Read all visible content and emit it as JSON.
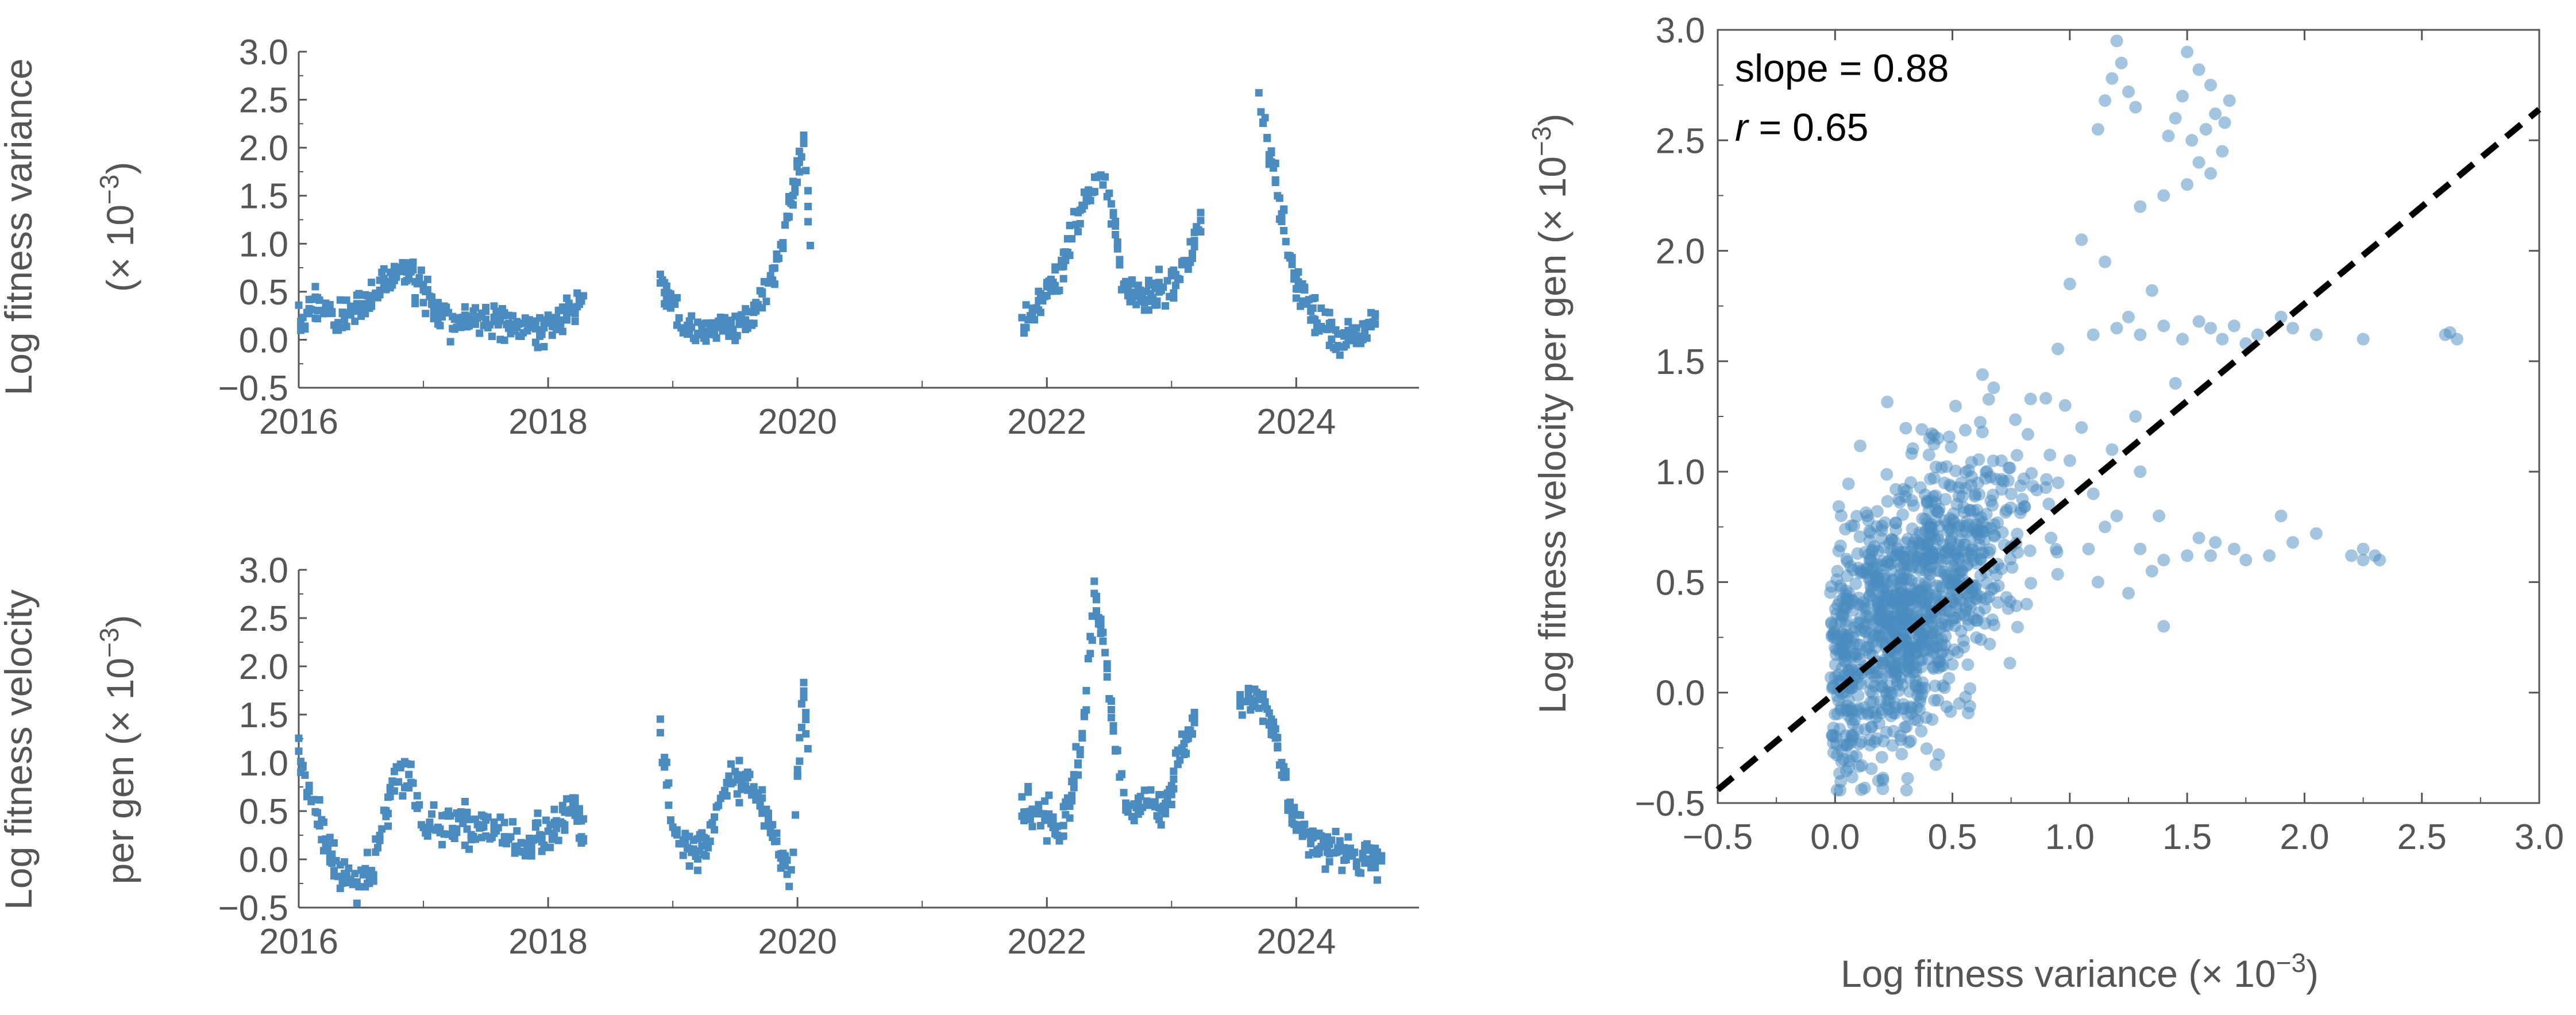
{
  "colors": {
    "series": "#4a8bc0",
    "scatter": "#4a8bc0",
    "fit_line": "#000000",
    "axis": "#555555"
  },
  "chart_data": [
    {
      "id": "variance_time",
      "type": "scatter",
      "ylabel_line1": "Log fitness variance",
      "ylabel_line2": "(× 10",
      "ylabel_line2_sup": "−3",
      "ylabel_line2_end": ")",
      "xlim": [
        2016.0,
        2024.8
      ],
      "ylim": [
        -0.5,
        3.0
      ],
      "xticks": [
        2016,
        2018,
        2020,
        2022,
        2024
      ],
      "xticks_minor": [
        2017,
        2019,
        2021,
        2023
      ],
      "yticks": [
        -0.5,
        0.0,
        0.5,
        1.0,
        1.5,
        2.0,
        2.5,
        3.0
      ],
      "ytick_labels": [
        "−0.5",
        "0.0",
        "0.5",
        "1.0",
        "1.5",
        "2.0",
        "2.5",
        "3.0"
      ],
      "anchors": [
        [
          2016.0,
          0.15
        ],
        [
          2016.1,
          0.35
        ],
        [
          2016.25,
          0.3
        ],
        [
          2016.3,
          0.15
        ],
        [
          2016.45,
          0.3
        ],
        [
          2016.6,
          0.5
        ],
        [
          2016.75,
          0.65
        ],
        [
          2016.85,
          0.75
        ],
        [
          2016.95,
          0.55
        ],
        [
          2017.1,
          0.35
        ],
        [
          2017.3,
          0.2
        ],
        [
          2017.5,
          0.25
        ],
        [
          2017.7,
          0.15
        ],
        [
          2017.9,
          0.1
        ],
        [
          2018.1,
          0.2
        ],
        [
          2018.3,
          0.4
        ],
        [
          null,
          null
        ],
        [
          2018.9,
          0.55
        ],
        [
          2019.0,
          0.35
        ],
        [
          2019.1,
          0.12
        ],
        [
          2019.3,
          0.08
        ],
        [
          2019.5,
          0.15
        ],
        [
          2019.65,
          0.3
        ],
        [
          2019.8,
          0.7
        ],
        [
          2019.9,
          1.1
        ],
        [
          2019.98,
          1.6
        ],
        [
          2020.05,
          2.1
        ],
        [
          2020.12,
          0.6
        ],
        [
          null,
          null
        ],
        [
          2021.8,
          0.05
        ],
        [
          2021.95,
          0.45
        ],
        [
          2022.1,
          0.7
        ],
        [
          2022.25,
          1.3
        ],
        [
          2022.35,
          1.55
        ],
        [
          2022.45,
          1.75
        ],
        [
          2022.55,
          1.2
        ],
        [
          2022.6,
          0.55
        ],
        [
          2022.75,
          0.4
        ],
        [
          2022.9,
          0.5
        ],
        [
          2023.05,
          0.6
        ],
        [
          2023.15,
          0.9
        ],
        [
          2023.25,
          1.3
        ],
        [
          null,
          null
        ],
        [
          2023.7,
          2.55
        ],
        [
          2023.8,
          1.9
        ],
        [
          2023.9,
          1.2
        ],
        [
          2024.0,
          0.6
        ],
        [
          2024.15,
          0.25
        ],
        [
          2024.3,
          0.05
        ],
        [
          2024.5,
          0.02
        ],
        [
          2024.65,
          0.25
        ]
      ]
    },
    {
      "id": "velocity_time",
      "type": "scatter",
      "ylabel_line1": "Log fitness velocity",
      "ylabel_line2": "per gen (× 10",
      "ylabel_line2_sup": "−3",
      "ylabel_line2_end": ")",
      "xlim": [
        2016.0,
        2024.8
      ],
      "ylim": [
        -0.5,
        3.0
      ],
      "xticks": [
        2016,
        2018,
        2020,
        2022,
        2024
      ],
      "xticks_minor": [
        2017,
        2019,
        2021,
        2023
      ],
      "yticks": [
        -0.5,
        0.0,
        0.5,
        1.0,
        1.5,
        2.0,
        2.5,
        3.0
      ],
      "ytick_labels": [
        "−0.5",
        "0.0",
        "0.5",
        "1.0",
        "1.5",
        "2.0",
        "2.5",
        "3.0"
      ],
      "anchors": [
        [
          2016.0,
          1.2
        ],
        [
          2016.1,
          0.6
        ],
        [
          2016.2,
          0.3
        ],
        [
          2016.3,
          -0.1
        ],
        [
          2016.45,
          -0.2
        ],
        [
          2016.6,
          -0.1
        ],
        [
          2016.75,
          0.8
        ],
        [
          2016.9,
          0.9
        ],
        [
          2017.0,
          0.3
        ],
        [
          2017.2,
          0.35
        ],
        [
          2017.4,
          0.3
        ],
        [
          2017.6,
          0.3
        ],
        [
          2017.8,
          0.1
        ],
        [
          2018.0,
          0.3
        ],
        [
          2018.2,
          0.6
        ],
        [
          2018.3,
          0.25
        ],
        [
          null,
          null
        ],
        [
          2018.9,
          1.3
        ],
        [
          2019.0,
          0.3
        ],
        [
          2019.15,
          0.1
        ],
        [
          2019.3,
          0.3
        ],
        [
          2019.45,
          0.85
        ],
        [
          2019.6,
          0.8
        ],
        [
          2019.75,
          0.5
        ],
        [
          2019.85,
          0.1
        ],
        [
          2019.95,
          -0.2
        ],
        [
          2020.0,
          0.9
        ],
        [
          2020.05,
          1.8
        ],
        [
          2020.1,
          0.6
        ],
        [
          null,
          null
        ],
        [
          2021.8,
          0.5
        ],
        [
          2021.95,
          0.45
        ],
        [
          2022.1,
          0.3
        ],
        [
          2022.2,
          0.6
        ],
        [
          2022.3,
          1.4
        ],
        [
          2022.38,
          2.7
        ],
        [
          2022.45,
          2.3
        ],
        [
          2022.55,
          1.1
        ],
        [
          2022.65,
          0.5
        ],
        [
          2022.8,
          0.6
        ],
        [
          2022.95,
          0.5
        ],
        [
          2023.05,
          1.0
        ],
        [
          2023.2,
          1.5
        ],
        [
          null,
          null
        ],
        [
          2023.55,
          1.6
        ],
        [
          2023.7,
          1.7
        ],
        [
          2023.85,
          1.2
        ],
        [
          2023.95,
          0.5
        ],
        [
          2024.1,
          0.2
        ],
        [
          2024.3,
          0.1
        ],
        [
          2024.5,
          0.05
        ],
        [
          2024.7,
          -0.05
        ]
      ]
    },
    {
      "id": "velocity_vs_variance",
      "type": "scatter",
      "xlabel": "Log fitness variance (× 10",
      "xlabel_sup": "−3",
      "xlabel_end": ")",
      "ylabel": "Log fitness velocity per gen (× 10",
      "ylabel_sup": "−3",
      "ylabel_end": ")",
      "xlim": [
        -0.5,
        3.0
      ],
      "ylim": [
        -0.5,
        3.0
      ],
      "xticks": [
        -0.5,
        0.0,
        0.5,
        1.0,
        1.5,
        2.0,
        2.5,
        3.0
      ],
      "xtick_labels": [
        "−0.5",
        "0.0",
        "0.5",
        "1.0",
        "1.5",
        "2.0",
        "2.5",
        "3.0"
      ],
      "yticks": [
        -0.5,
        0.0,
        0.5,
        1.0,
        1.5,
        2.0,
        2.5,
        3.0
      ],
      "ytick_labels": [
        "−0.5",
        "0.0",
        "0.5",
        "1.0",
        "1.5",
        "2.0",
        "2.5",
        "3.0"
      ],
      "fit": {
        "slope": 0.88,
        "intercept": 0.0
      },
      "annotation_slope": "slope = 0.88",
      "annotation_r_var": "r",
      "annotation_r_val": " = 0.65",
      "points": [
        [
          1.2,
          2.95
        ],
        [
          1.22,
          2.85
        ],
        [
          1.18,
          2.78
        ],
        [
          1.25,
          2.72
        ],
        [
          1.15,
          2.68
        ],
        [
          1.28,
          2.65
        ],
        [
          1.12,
          2.55
        ],
        [
          1.5,
          2.9
        ],
        [
          1.55,
          2.82
        ],
        [
          1.6,
          2.75
        ],
        [
          1.48,
          2.7
        ],
        [
          1.62,
          2.62
        ],
        [
          1.58,
          2.55
        ],
        [
          1.52,
          2.5
        ],
        [
          1.65,
          2.45
        ],
        [
          1.55,
          2.4
        ],
        [
          1.6,
          2.35
        ],
        [
          1.5,
          2.3
        ],
        [
          1.45,
          2.6
        ],
        [
          1.68,
          2.68
        ],
        [
          1.42,
          2.52
        ],
        [
          1.66,
          2.58
        ],
        [
          1.4,
          2.25
        ],
        [
          1.3,
          2.2
        ],
        [
          1.05,
          2.05
        ],
        [
          1.0,
          1.85
        ],
        [
          1.15,
          1.95
        ],
        [
          1.35,
          1.82
        ],
        [
          1.25,
          1.7
        ],
        [
          1.1,
          1.62
        ],
        [
          1.2,
          1.65
        ],
        [
          1.4,
          1.66
        ],
        [
          1.3,
          1.62
        ],
        [
          1.55,
          1.68
        ],
        [
          1.6,
          1.65
        ],
        [
          1.7,
          1.66
        ],
        [
          1.8,
          1.62
        ],
        [
          1.95,
          1.65
        ],
        [
          2.05,
          1.62
        ],
        [
          2.25,
          1.6
        ],
        [
          2.6,
          1.62
        ],
        [
          2.65,
          1.6
        ],
        [
          2.62,
          1.63
        ],
        [
          1.65,
          1.6
        ],
        [
          1.48,
          1.6
        ],
        [
          1.75,
          1.58
        ],
        [
          1.9,
          1.7
        ],
        [
          1.5,
          0.62
        ],
        [
          1.6,
          0.62
        ],
        [
          1.7,
          0.65
        ],
        [
          1.85,
          0.62
        ],
        [
          1.95,
          0.68
        ],
        [
          2.05,
          0.72
        ],
        [
          2.2,
          0.62
        ],
        [
          2.25,
          0.6
        ],
        [
          2.3,
          0.62
        ],
        [
          2.32,
          0.6
        ],
        [
          1.55,
          0.7
        ],
        [
          1.4,
          0.6
        ],
        [
          1.3,
          0.65
        ],
        [
          1.75,
          0.6
        ],
        [
          1.9,
          0.8
        ],
        [
          2.25,
          0.65
        ],
        [
          1.62,
          0.68
        ],
        [
          1.05,
          1.2
        ],
        [
          1.0,
          1.05
        ],
        [
          0.95,
          0.95
        ],
        [
          1.1,
          0.9
        ],
        [
          1.2,
          0.8
        ],
        [
          1.15,
          0.75
        ],
        [
          1.3,
          1.0
        ],
        [
          1.35,
          0.55
        ],
        [
          1.25,
          0.45
        ],
        [
          1.4,
          0.3
        ],
        [
          1.18,
          1.1
        ],
        [
          1.08,
          0.65
        ],
        [
          0.98,
          1.3
        ],
        [
          0.92,
          0.7
        ],
        [
          1.12,
          0.5
        ],
        [
          1.28,
          1.25
        ],
        [
          1.45,
          1.4
        ],
        [
          1.38,
          0.8
        ]
      ],
      "cloud": {
        "count": 1100,
        "seed": 12345,
        "x_mean": 0.32,
        "x_sd": 0.24,
        "noise_sd": 0.3,
        "x_min": -0.02,
        "x_max": 0.95,
        "y_min": -0.45,
        "y_max": 1.72
      }
    }
  ]
}
